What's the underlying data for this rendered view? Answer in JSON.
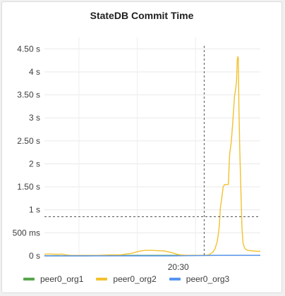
{
  "panel": {
    "title": "StateDB Commit Time"
  },
  "chart_data": {
    "type": "line",
    "title": "StateDB Commit Time",
    "xlabel": "",
    "ylabel": "",
    "ylim": [
      0,
      4.75
    ],
    "y_ticks": [
      {
        "value": 0,
        "label": "0 s"
      },
      {
        "value": 0.5,
        "label": "500 ms"
      },
      {
        "value": 1,
        "label": "1 s"
      },
      {
        "value": 1.5,
        "label": "1.50 s"
      },
      {
        "value": 2,
        "label": "2 s"
      },
      {
        "value": 2.5,
        "label": "2.50 s"
      },
      {
        "value": 3,
        "label": "3 s"
      },
      {
        "value": 3.5,
        "label": "3.50 s"
      },
      {
        "value": 4,
        "label": "4 s"
      },
      {
        "value": 4.5,
        "label": "4.50 s"
      }
    ],
    "x_ticks": [
      "20:30"
    ],
    "grid": true,
    "legend_position": "bottom",
    "crosshair": {
      "x": 0.74,
      "y": 0.85
    },
    "series": [
      {
        "name": "peer0_org1",
        "color": "#56a64b",
        "points": [
          [
            0,
            0.0
          ],
          [
            0.2,
            0.0
          ],
          [
            0.4,
            0.01
          ],
          [
            0.6,
            0.01
          ],
          [
            0.8,
            0.01
          ],
          [
            1.0,
            0.01
          ]
        ]
      },
      {
        "name": "peer0_org2",
        "color": "#f2c12e",
        "points": [
          [
            0.0,
            0.03
          ],
          [
            0.01,
            0.04
          ],
          [
            0.03,
            0.04
          ],
          [
            0.06,
            0.03
          ],
          [
            0.08,
            0.04
          ],
          [
            0.1,
            0.02
          ],
          [
            0.12,
            0.01
          ],
          [
            0.18,
            0.01
          ],
          [
            0.25,
            0.01
          ],
          [
            0.3,
            0.02
          ],
          [
            0.35,
            0.02
          ],
          [
            0.38,
            0.04
          ],
          [
            0.41,
            0.06
          ],
          [
            0.43,
            0.09
          ],
          [
            0.45,
            0.11
          ],
          [
            0.47,
            0.12
          ],
          [
            0.5,
            0.12
          ],
          [
            0.53,
            0.11
          ],
          [
            0.55,
            0.11
          ],
          [
            0.57,
            0.09
          ],
          [
            0.59,
            0.07
          ],
          [
            0.61,
            0.04
          ],
          [
            0.63,
            0.02
          ],
          [
            0.66,
            0.01
          ],
          [
            0.7,
            0.01
          ],
          [
            0.74,
            0.01
          ],
          [
            0.76,
            0.02
          ],
          [
            0.78,
            0.08
          ],
          [
            0.79,
            0.15
          ],
          [
            0.8,
            0.3
          ],
          [
            0.805,
            0.45
          ],
          [
            0.81,
            0.65
          ],
          [
            0.815,
            1.05
          ],
          [
            0.82,
            1.2
          ],
          [
            0.828,
            1.5
          ],
          [
            0.835,
            1.55
          ],
          [
            0.845,
            1.55
          ],
          [
            0.852,
            1.55
          ],
          [
            0.858,
            2.2
          ],
          [
            0.866,
            2.5
          ],
          [
            0.874,
            3.0
          ],
          [
            0.88,
            3.45
          ],
          [
            0.885,
            3.6
          ],
          [
            0.89,
            3.8
          ],
          [
            0.893,
            4.25
          ],
          [
            0.896,
            4.33
          ],
          [
            0.898,
            4.3
          ],
          [
            0.901,
            3.2
          ],
          [
            0.905,
            2.3
          ],
          [
            0.91,
            1.4
          ],
          [
            0.915,
            0.6
          ],
          [
            0.92,
            0.28
          ],
          [
            0.925,
            0.2
          ],
          [
            0.93,
            0.15
          ],
          [
            0.94,
            0.12
          ],
          [
            0.96,
            0.11
          ],
          [
            0.98,
            0.1
          ],
          [
            1.0,
            0.1
          ]
        ]
      },
      {
        "name": "peer0_org3",
        "color": "#5794f2",
        "points": [
          [
            0,
            0.0
          ],
          [
            0.3,
            0.0
          ],
          [
            0.6,
            0.0
          ],
          [
            0.8,
            0.01
          ],
          [
            1.0,
            0.01
          ]
        ]
      }
    ]
  }
}
